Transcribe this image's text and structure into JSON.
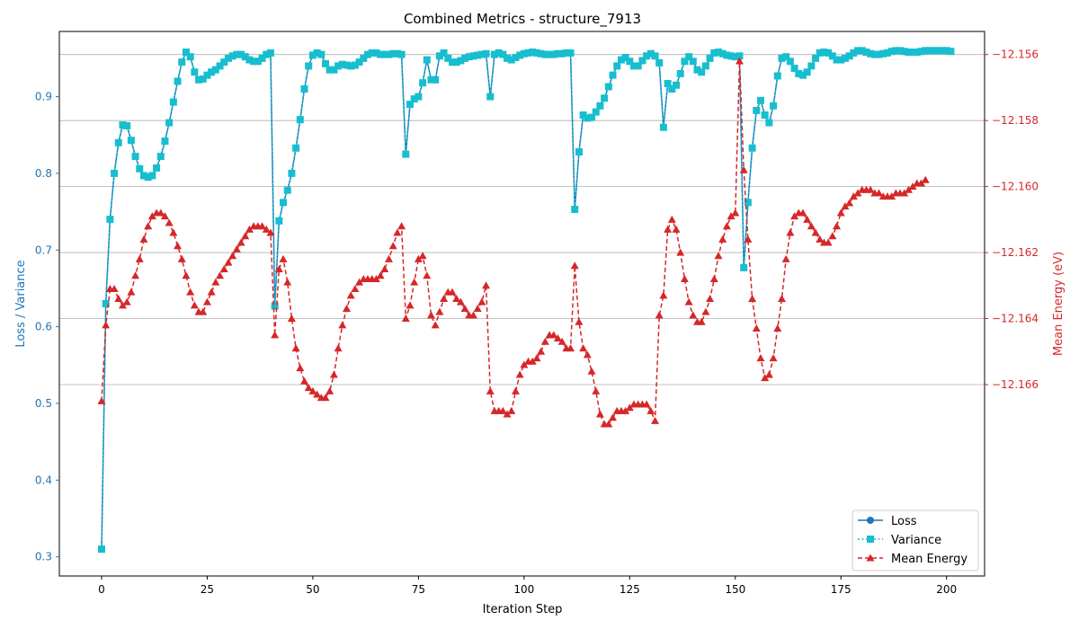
{
  "chart_data": {
    "type": "line",
    "title": "Combined Metrics - structure_7913",
    "xlabel": "Iteration Step",
    "ylabel_left": "Loss / Variance",
    "ylabel_right": "Mean Energy (eV)",
    "xlim": [
      -10,
      209
    ],
    "ylim_left": [
      0.275,
      0.985
    ],
    "ylim_right": [
      -12.1718,
      -12.1553
    ],
    "xticks": [
      0,
      25,
      50,
      75,
      100,
      125,
      150,
      175,
      200
    ],
    "yticks_left": [
      0.3,
      0.4,
      0.5,
      0.6,
      0.7,
      0.8,
      0.9
    ],
    "yticks_right": [
      -12.166,
      -12.164,
      -12.162,
      -12.16,
      -12.158,
      -12.156
    ],
    "grid": "right-axis horizontal",
    "legend_position": "lower-right",
    "colors": {
      "loss": "#1f77b4",
      "variance": "#17becf",
      "energy": "#d62728",
      "left_axis": "#1f77b4",
      "right_axis": "#d62728"
    },
    "legend": [
      "Loss",
      "Variance",
      "Mean Energy"
    ],
    "series": [
      {
        "name": "Variance",
        "axis": "left",
        "values": [
          0.31,
          0.63,
          0.74,
          0.8,
          0.84,
          0.863,
          0.862,
          0.843,
          0.822,
          0.806,
          0.797,
          0.795,
          0.797,
          0.807,
          0.822,
          0.842,
          0.866,
          0.893,
          0.92,
          0.945,
          0.958,
          0.952,
          0.932,
          0.922,
          0.923,
          0.928,
          0.932,
          0.935,
          0.94,
          0.945,
          0.95,
          0.953,
          0.955,
          0.955,
          0.952,
          0.948,
          0.946,
          0.946,
          0.95,
          0.955,
          0.957,
          0.627,
          0.738,
          0.762,
          0.778,
          0.8,
          0.833,
          0.87,
          0.91,
          0.94,
          0.954,
          0.957,
          0.955,
          0.943,
          0.935,
          0.935,
          0.94,
          0.942,
          0.941,
          0.94,
          0.941,
          0.945,
          0.95,
          0.955,
          0.957,
          0.957,
          0.955,
          0.955,
          0.955,
          0.956,
          0.956,
          0.955,
          0.825,
          0.89,
          0.897,
          0.9,
          0.918,
          0.948,
          0.922,
          0.922,
          0.953,
          0.957,
          0.95,
          0.945,
          0.945,
          0.947,
          0.95,
          0.952,
          0.953,
          0.954,
          0.955,
          0.956,
          0.9,
          0.955,
          0.957,
          0.955,
          0.95,
          0.948,
          0.951,
          0.954,
          0.956,
          0.957,
          0.958,
          0.957,
          0.956,
          0.955,
          0.955,
          0.955,
          0.956,
          0.956,
          0.957,
          0.957,
          0.753,
          0.828,
          0.876,
          0.872,
          0.873,
          0.88,
          0.888,
          0.898,
          0.913,
          0.928,
          0.94,
          0.948,
          0.951,
          0.946,
          0.94,
          0.94,
          0.947,
          0.953,
          0.956,
          0.953,
          0.944,
          0.86,
          0.917,
          0.91,
          0.915,
          0.93,
          0.946,
          0.952,
          0.946,
          0.935,
          0.932,
          0.94,
          0.95,
          0.957,
          0.958,
          0.956,
          0.954,
          0.953,
          0.952,
          0.953,
          0.677,
          0.762,
          0.833,
          0.882,
          0.895,
          0.876,
          0.866,
          0.888,
          0.927,
          0.95,
          0.952,
          0.946,
          0.937,
          0.93,
          0.928,
          0.932,
          0.94,
          0.95,
          0.957,
          0.958,
          0.957,
          0.953,
          0.948,
          0.948,
          0.95,
          0.953,
          0.957,
          0.96,
          0.96,
          0.958,
          0.956,
          0.955,
          0.955,
          0.956,
          0.957,
          0.959,
          0.96,
          0.96,
          0.959,
          0.958,
          0.958,
          0.958,
          0.959,
          0.96,
          0.96,
          0.96,
          0.96,
          0.96,
          0.96,
          0.959
        ]
      },
      {
        "name": "Mean Energy",
        "axis": "right",
        "values": [
          -12.1665,
          -12.1642,
          -12.1631,
          -12.1631,
          -12.1634,
          -12.1636,
          -12.1635,
          -12.1632,
          -12.1627,
          -12.1622,
          -12.1616,
          -12.1612,
          -12.1609,
          -12.1608,
          -12.1608,
          -12.1609,
          -12.1611,
          -12.1614,
          -12.1618,
          -12.1622,
          -12.1627,
          -12.1632,
          -12.1636,
          -12.1638,
          -12.1638,
          -12.1635,
          -12.1632,
          -12.1629,
          -12.1627,
          -12.1625,
          -12.1623,
          -12.1621,
          -12.1619,
          -12.1617,
          -12.1615,
          -12.1613,
          -12.1612,
          -12.1612,
          -12.1612,
          -12.1613,
          -12.1614,
          -12.1645,
          -12.1625,
          -12.1622,
          -12.1629,
          -12.164,
          -12.1649,
          -12.1655,
          -12.1659,
          -12.1661,
          -12.1662,
          -12.1663,
          -12.1664,
          -12.1664,
          -12.1662,
          -12.1657,
          -12.1649,
          -12.1642,
          -12.1637,
          -12.1633,
          -12.1631,
          -12.1629,
          -12.1628,
          -12.1628,
          -12.1628,
          -12.1628,
          -12.1627,
          -12.1625,
          -12.1622,
          -12.1618,
          -12.1614,
          -12.1612,
          -12.164,
          -12.1636,
          -12.1629,
          -12.1622,
          -12.1621,
          -12.1627,
          -12.1639,
          -12.1642,
          -12.1638,
          -12.1634,
          -12.1632,
          -12.1632,
          -12.1634,
          -12.1635,
          -12.1637,
          -12.1639,
          -12.1639,
          -12.1637,
          -12.1635,
          -12.163,
          -12.1662,
          -12.1668,
          -12.1668,
          -12.1668,
          -12.1669,
          -12.1668,
          -12.1662,
          -12.1657,
          -12.1654,
          -12.1653,
          -12.1653,
          -12.1652,
          -12.165,
          -12.1647,
          -12.1645,
          -12.1645,
          -12.1646,
          -12.1647,
          -12.1649,
          -12.1649,
          -12.1624,
          -12.1641,
          -12.1649,
          -12.1651,
          -12.1656,
          -12.1662,
          -12.1669,
          -12.1672,
          -12.1672,
          -12.167,
          -12.1668,
          -12.1668,
          -12.1668,
          -12.1667,
          -12.1666,
          -12.1666,
          -12.1666,
          -12.1666,
          -12.1668,
          -12.1671,
          -12.1639,
          -12.1633,
          -12.1613,
          -12.161,
          -12.1613,
          -12.162,
          -12.1628,
          -12.1635,
          -12.1639,
          -12.1641,
          -12.1641,
          -12.1638,
          -12.1634,
          -12.1628,
          -12.1621,
          -12.1616,
          -12.1612,
          -12.1609,
          -12.1608,
          -12.1562,
          -12.1595,
          -12.1616,
          -12.1634,
          -12.1643,
          -12.1652,
          -12.1658,
          -12.1657,
          -12.1652,
          -12.1643,
          -12.1634,
          -12.1622,
          -12.1614,
          -12.1609,
          -12.1608,
          -12.1608,
          -12.161,
          -12.1612,
          -12.1614,
          -12.1616,
          -12.1617,
          -12.1617,
          -12.1615,
          -12.1612,
          -12.1608,
          -12.1606,
          -12.1605,
          -12.1603,
          -12.1602,
          -12.1601,
          -12.1601,
          -12.1601,
          -12.1602,
          -12.1602,
          -12.1603,
          -12.1603,
          -12.1603,
          -12.1602,
          -12.1602,
          -12.1602,
          -12.1601,
          -12.16,
          -12.1599,
          -12.1599,
          -12.1598
        ]
      }
    ]
  }
}
